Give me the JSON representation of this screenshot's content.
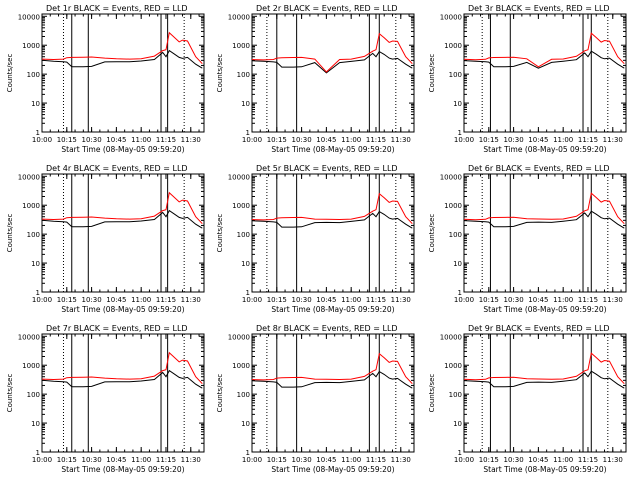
{
  "figure": {
    "colors": {
      "events": "#000000",
      "lld": "#ff0000",
      "axes": "#000000",
      "background": "#ffffff"
    }
  },
  "chart_data": [
    {
      "type": "line",
      "title": "Det 1r  BLACK = Events, RED = LLD",
      "xlabel": "Start Time (08-May-05 09:59:20)",
      "ylabel": "Counts/sec",
      "x": [
        "10:00",
        "10:07",
        "10:13",
        "10:15",
        "10:18",
        "10:25",
        "10:30",
        "10:38",
        "10:45",
        "10:53",
        "11:00",
        "11:08",
        "11:13",
        "11:15",
        "11:17",
        "11:20",
        "11:23",
        "11:25",
        "11:28",
        "11:33",
        "11:37"
      ],
      "xticks": [
        "10:00",
        "10:15",
        "10:30",
        "10:45",
        "11:00",
        "11:15",
        "11:30"
      ],
      "yticks": [
        "1",
        "10",
        "100",
        "1000",
        "10000"
      ],
      "ylim": [
        1,
        12000
      ],
      "yscale": "log",
      "vlines_dotted": [
        "10:13",
        "11:26"
      ],
      "vlines_solid": [
        "10:18",
        "10:28",
        "11:12",
        "11:16"
      ],
      "series": [
        {
          "name": "BLACK = Events",
          "values": [
            300,
            280,
            270,
            260,
            180,
            180,
            185,
            265,
            270,
            270,
            285,
            320,
            560,
            400,
            650,
            500,
            380,
            350,
            380,
            220,
            160
          ]
        },
        {
          "name": "RED = LLD",
          "values": [
            330,
            320,
            330,
            370,
            380,
            385,
            390,
            360,
            340,
            330,
            340,
            420,
            650,
            700,
            2700,
            1900,
            1300,
            1500,
            1400,
            400,
            230
          ]
        }
      ]
    },
    {
      "type": "line",
      "title": "Det 2r  BLACK = Events, RED = LLD",
      "xlabel": "Start Time (08-May-05 09:59:20)",
      "ylabel": "Counts/sec",
      "x": [
        "10:00",
        "10:07",
        "10:13",
        "10:15",
        "10:18",
        "10:25",
        "10:30",
        "10:38",
        "10:45",
        "10:53",
        "11:00",
        "11:08",
        "11:13",
        "11:15",
        "11:17",
        "11:20",
        "11:23",
        "11:25",
        "11:28",
        "11:33",
        "11:37"
      ],
      "xticks": [
        "10:00",
        "10:15",
        "10:30",
        "10:45",
        "11:00",
        "11:15",
        "11:30"
      ],
      "yticks": [
        "1",
        "10",
        "100",
        "1000",
        "10000"
      ],
      "ylim": [
        1,
        12000
      ],
      "yscale": "log",
      "vlines_dotted": [
        "10:09",
        "11:27"
      ],
      "vlines_solid": [
        "10:15",
        "10:27",
        "11:11",
        "11:17"
      ],
      "series": [
        {
          "name": "BLACK = Events",
          "values": [
            290,
            280,
            265,
            255,
            175,
            175,
            180,
            250,
            110,
            250,
            275,
            310,
            520,
            400,
            600,
            480,
            360,
            330,
            350,
            220,
            160
          ]
        },
        {
          "name": "RED = LLD",
          "values": [
            320,
            310,
            320,
            360,
            370,
            375,
            380,
            330,
            120,
            320,
            330,
            410,
            620,
            700,
            2500,
            1800,
            1250,
            1400,
            1350,
            400,
            230
          ]
        }
      ]
    },
    {
      "type": "line",
      "title": "Det 3r  BLACK = Events, RED = LLD",
      "xlabel": "Start Time (08-May-05 09:59:20)",
      "ylabel": "Counts/sec",
      "x": [
        "10:00",
        "10:07",
        "10:13",
        "10:15",
        "10:18",
        "10:25",
        "10:30",
        "10:38",
        "10:45",
        "10:53",
        "11:00",
        "11:08",
        "11:13",
        "11:15",
        "11:17",
        "11:20",
        "11:23",
        "11:25",
        "11:28",
        "11:33",
        "11:37"
      ],
      "xticks": [
        "10:00",
        "10:15",
        "10:30",
        "10:45",
        "11:00",
        "11:15",
        "11:30"
      ],
      "yticks": [
        "1",
        "10",
        "100",
        "1000",
        "10000"
      ],
      "ylim": [
        1,
        12000
      ],
      "yscale": "log",
      "vlines_dotted": [
        "10:11",
        "11:27"
      ],
      "vlines_solid": [
        "10:16",
        "10:28",
        "11:12",
        "11:17"
      ],
      "series": [
        {
          "name": "BLACK = Events",
          "values": [
            295,
            280,
            270,
            260,
            180,
            180,
            185,
            255,
            160,
            255,
            280,
            315,
            540,
            400,
            620,
            490,
            370,
            340,
            360,
            220,
            160
          ]
        },
        {
          "name": "RED = LLD",
          "values": [
            325,
            315,
            325,
            365,
            375,
            380,
            385,
            340,
            180,
            325,
            335,
            415,
            640,
            700,
            2600,
            1850,
            1280,
            1450,
            1380,
            400,
            230
          ]
        }
      ]
    },
    {
      "type": "line",
      "title": "Det 4r  BLACK = Events, RED = LLD",
      "xlabel": "Start Time (08-May-05 09:59:20)",
      "ylabel": "Counts/sec",
      "x": [
        "10:00",
        "10:07",
        "10:13",
        "10:15",
        "10:18",
        "10:25",
        "10:30",
        "10:38",
        "10:45",
        "10:53",
        "11:00",
        "11:08",
        "11:13",
        "11:15",
        "11:17",
        "11:20",
        "11:23",
        "11:25",
        "11:28",
        "11:33",
        "11:37"
      ],
      "xticks": [
        "10:00",
        "10:15",
        "10:30",
        "10:45",
        "11:00",
        "11:15",
        "11:30"
      ],
      "yticks": [
        "1",
        "10",
        "100",
        "1000",
        "10000"
      ],
      "ylim": [
        1,
        12000
      ],
      "yscale": "log",
      "vlines_dotted": [
        "10:13",
        "11:26"
      ],
      "vlines_solid": [
        "10:18",
        "10:28",
        "11:12",
        "11:16"
      ],
      "series": [
        {
          "name": "BLACK = Events",
          "values": [
            300,
            280,
            270,
            260,
            180,
            180,
            185,
            265,
            270,
            270,
            285,
            320,
            560,
            400,
            650,
            500,
            380,
            350,
            380,
            220,
            160
          ]
        },
        {
          "name": "RED = LLD",
          "values": [
            330,
            320,
            330,
            370,
            380,
            385,
            390,
            360,
            340,
            330,
            340,
            420,
            650,
            700,
            2700,
            1900,
            1300,
            1500,
            1400,
            400,
            230
          ]
        }
      ]
    },
    {
      "type": "line",
      "title": "Det 5r  BLACK = Events, RED = LLD",
      "xlabel": "Start Time (08-May-05 09:59:20)",
      "ylabel": "Counts/sec",
      "x": [
        "10:00",
        "10:07",
        "10:13",
        "10:15",
        "10:18",
        "10:25",
        "10:30",
        "10:38",
        "10:45",
        "10:53",
        "11:00",
        "11:08",
        "11:13",
        "11:15",
        "11:17",
        "11:20",
        "11:23",
        "11:25",
        "11:28",
        "11:33",
        "11:37"
      ],
      "xticks": [
        "10:00",
        "10:15",
        "10:30",
        "10:45",
        "11:00",
        "11:15",
        "11:30"
      ],
      "yticks": [
        "1",
        "10",
        "100",
        "1000",
        "10000"
      ],
      "ylim": [
        1,
        12000
      ],
      "yscale": "log",
      "vlines_dotted": [
        "10:09",
        "11:27"
      ],
      "vlines_solid": [
        "10:15",
        "10:27",
        "11:11",
        "11:17"
      ],
      "series": [
        {
          "name": "BLACK = Events",
          "values": [
            290,
            280,
            265,
            255,
            175,
            175,
            180,
            250,
            255,
            250,
            275,
            310,
            520,
            400,
            600,
            480,
            360,
            330,
            350,
            220,
            160
          ]
        },
        {
          "name": "RED = LLD",
          "values": [
            320,
            310,
            320,
            360,
            370,
            375,
            380,
            330,
            325,
            320,
            330,
            410,
            620,
            700,
            2500,
            1800,
            1250,
            1400,
            1350,
            400,
            230
          ]
        }
      ]
    },
    {
      "type": "line",
      "title": "Det 6r  BLACK = Events, RED = LLD",
      "xlabel": "Start Time (08-May-05 09:59:20)",
      "ylabel": "Counts/sec",
      "x": [
        "10:00",
        "10:07",
        "10:13",
        "10:15",
        "10:18",
        "10:25",
        "10:30",
        "10:38",
        "10:45",
        "10:53",
        "11:00",
        "11:08",
        "11:13",
        "11:15",
        "11:17",
        "11:20",
        "11:23",
        "11:25",
        "11:28",
        "11:33",
        "11:37"
      ],
      "xticks": [
        "10:00",
        "10:15",
        "10:30",
        "10:45",
        "11:00",
        "11:15",
        "11:30"
      ],
      "yticks": [
        "1",
        "10",
        "100",
        "1000",
        "10000"
      ],
      "ylim": [
        1,
        12000
      ],
      "yscale": "log",
      "vlines_dotted": [
        "10:11",
        "11:27"
      ],
      "vlines_solid": [
        "10:16",
        "10:28",
        "11:12",
        "11:17"
      ],
      "series": [
        {
          "name": "BLACK = Events",
          "values": [
            295,
            280,
            270,
            260,
            180,
            180,
            185,
            255,
            260,
            255,
            280,
            315,
            540,
            400,
            620,
            490,
            370,
            340,
            360,
            220,
            160
          ]
        },
        {
          "name": "RED = LLD",
          "values": [
            325,
            315,
            325,
            365,
            375,
            380,
            385,
            340,
            335,
            325,
            335,
            415,
            640,
            700,
            2600,
            1850,
            1280,
            1450,
            1380,
            400,
            230
          ]
        }
      ]
    },
    {
      "type": "line",
      "title": "Det 7r  BLACK = Events, RED = LLD",
      "xlabel": "Start Time (08-May-05 09:59:20)",
      "ylabel": "Counts/sec",
      "x": [
        "10:00",
        "10:07",
        "10:13",
        "10:15",
        "10:18",
        "10:25",
        "10:30",
        "10:38",
        "10:45",
        "10:53",
        "11:00",
        "11:08",
        "11:13",
        "11:15",
        "11:17",
        "11:20",
        "11:23",
        "11:25",
        "11:28",
        "11:33",
        "11:37"
      ],
      "xticks": [
        "10:00",
        "10:15",
        "10:30",
        "10:45",
        "11:00",
        "11:15",
        "11:30"
      ],
      "yticks": [
        "1",
        "10",
        "100",
        "1000",
        "10000"
      ],
      "ylim": [
        1,
        12000
      ],
      "yscale": "log",
      "vlines_dotted": [
        "10:13",
        "11:26"
      ],
      "vlines_solid": [
        "10:18",
        "10:28",
        "11:12",
        "11:16"
      ],
      "series": [
        {
          "name": "BLACK = Events",
          "values": [
            300,
            280,
            270,
            260,
            180,
            180,
            185,
            265,
            270,
            270,
            285,
            320,
            560,
            400,
            650,
            500,
            380,
            350,
            380,
            220,
            160
          ]
        },
        {
          "name": "RED = LLD",
          "values": [
            330,
            320,
            330,
            370,
            380,
            385,
            390,
            360,
            340,
            330,
            340,
            420,
            650,
            700,
            2700,
            1900,
            1300,
            1500,
            1400,
            400,
            230
          ]
        }
      ]
    },
    {
      "type": "line",
      "title": "Det 8r  BLACK = Events, RED = LLD",
      "xlabel": "Start Time (08-May-05 09:59:20)",
      "ylabel": "Counts/sec",
      "x": [
        "10:00",
        "10:07",
        "10:13",
        "10:15",
        "10:18",
        "10:25",
        "10:30",
        "10:38",
        "10:45",
        "10:53",
        "11:00",
        "11:08",
        "11:13",
        "11:15",
        "11:17",
        "11:20",
        "11:23",
        "11:25",
        "11:28",
        "11:33",
        "11:37"
      ],
      "xticks": [
        "10:00",
        "10:15",
        "10:30",
        "10:45",
        "11:00",
        "11:15",
        "11:30"
      ],
      "yticks": [
        "1",
        "10",
        "100",
        "1000",
        "10000"
      ],
      "ylim": [
        1,
        12000
      ],
      "yscale": "log",
      "vlines_dotted": [
        "10:09",
        "11:27"
      ],
      "vlines_solid": [
        "10:15",
        "10:27",
        "11:11",
        "11:17"
      ],
      "series": [
        {
          "name": "BLACK = Events",
          "values": [
            290,
            280,
            265,
            255,
            175,
            175,
            180,
            250,
            255,
            250,
            275,
            310,
            520,
            400,
            600,
            480,
            360,
            330,
            350,
            220,
            160
          ]
        },
        {
          "name": "RED = LLD",
          "values": [
            320,
            310,
            320,
            360,
            370,
            375,
            380,
            330,
            325,
            320,
            330,
            410,
            620,
            700,
            2500,
            1800,
            1250,
            1400,
            1350,
            400,
            230
          ]
        }
      ]
    },
    {
      "type": "line",
      "title": "Det 9r  BLACK = Events, RED = LLD",
      "xlabel": "Start Time (08-May-05 09:59:20)",
      "ylabel": "Counts/sec",
      "x": [
        "10:00",
        "10:07",
        "10:13",
        "10:15",
        "10:18",
        "10:25",
        "10:30",
        "10:38",
        "10:45",
        "10:53",
        "11:00",
        "11:08",
        "11:13",
        "11:15",
        "11:17",
        "11:20",
        "11:23",
        "11:25",
        "11:28",
        "11:33",
        "11:37"
      ],
      "xticks": [
        "10:00",
        "10:15",
        "10:30",
        "10:45",
        "11:00",
        "11:15",
        "11:30"
      ],
      "yticks": [
        "1",
        "10",
        "100",
        "1000",
        "10000"
      ],
      "ylim": [
        1,
        12000
      ],
      "yscale": "log",
      "vlines_dotted": [
        "10:11",
        "11:27"
      ],
      "vlines_solid": [
        "10:16",
        "10:28",
        "11:12",
        "11:17"
      ],
      "series": [
        {
          "name": "BLACK = Events",
          "values": [
            295,
            280,
            270,
            260,
            180,
            180,
            185,
            255,
            260,
            255,
            280,
            315,
            540,
            400,
            620,
            490,
            370,
            340,
            360,
            220,
            160
          ]
        },
        {
          "name": "RED = LLD",
          "values": [
            325,
            315,
            325,
            365,
            375,
            380,
            385,
            340,
            335,
            325,
            335,
            415,
            640,
            700,
            2600,
            1850,
            1280,
            1450,
            1380,
            400,
            230
          ]
        }
      ]
    }
  ]
}
